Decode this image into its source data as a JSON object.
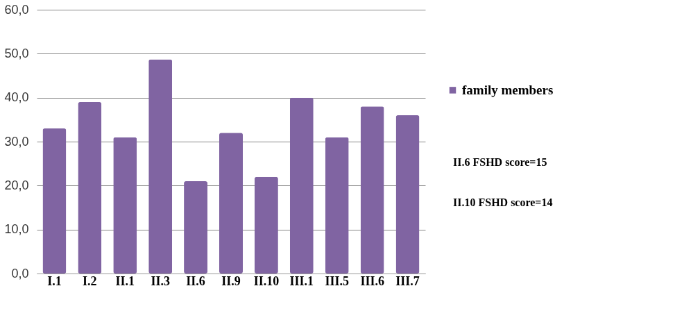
{
  "chart_data": {
    "type": "bar",
    "categories": [
      "I.1",
      "I.2",
      "II.1",
      "II.3",
      "II.6",
      "II.9",
      "II.10",
      "III.1",
      "III.5",
      "III.6",
      "III.7"
    ],
    "series": [
      {
        "name": "family members",
        "color": "#8064a2",
        "values": [
          33,
          39,
          31,
          48.7,
          21,
          32,
          22,
          40,
          31,
          38,
          36
        ]
      }
    ],
    "ylim": [
      0,
      60
    ],
    "yticks": [
      {
        "value": 0,
        "label": "0,0"
      },
      {
        "value": 10,
        "label": "10,0"
      },
      {
        "value": 20,
        "label": "20,0"
      },
      {
        "value": 30,
        "label": "30,0"
      },
      {
        "value": 40,
        "label": "40,0"
      },
      {
        "value": 50,
        "label": "50,0"
      },
      {
        "value": 60,
        "label": "60,0"
      }
    ],
    "grid": "y",
    "legend": "right",
    "annotations": [
      "II.6  FSHD score=15",
      "II.10 FSHD score=14"
    ]
  }
}
